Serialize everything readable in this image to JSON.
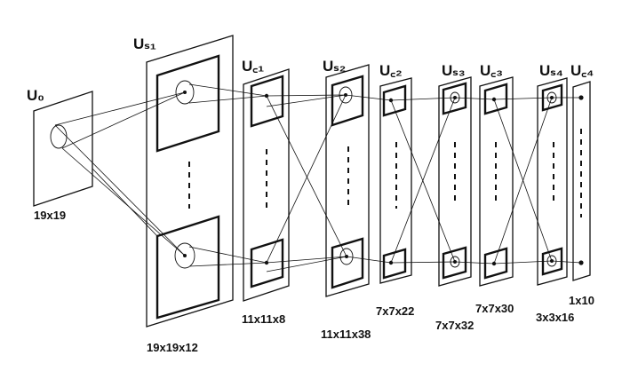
{
  "diagram": {
    "layers": [
      {
        "id": "u0",
        "label": "U₀",
        "size": "19x19"
      },
      {
        "id": "us1",
        "label": "Uₛ₁",
        "size": "19x19x12"
      },
      {
        "id": "uc1",
        "label": "U꜀₁",
        "size": "11x11x8"
      },
      {
        "id": "us2",
        "label": "Uₛ₂",
        "size": "11x11x38"
      },
      {
        "id": "uc2",
        "label": "U꜀₂",
        "size": "7x7x22"
      },
      {
        "id": "us3",
        "label": "Uₛ₃",
        "size": "7x7x32"
      },
      {
        "id": "uc3",
        "label": "U꜀₃",
        "size": "7x7x30"
      },
      {
        "id": "us4",
        "label": "Uₛ₄",
        "size": "3x3x16"
      },
      {
        "id": "uc4",
        "label": "U꜀₄",
        "size": "1x10"
      }
    ]
  }
}
